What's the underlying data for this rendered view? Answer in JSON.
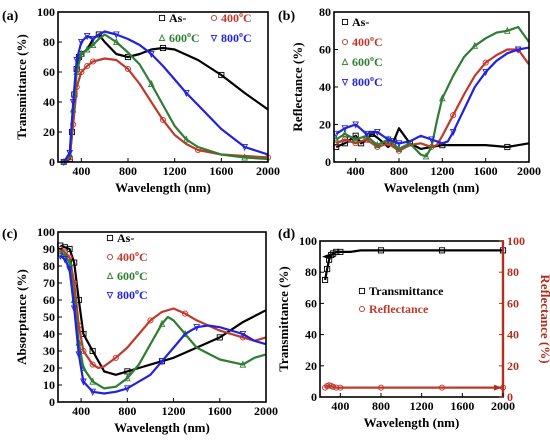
{
  "chart_data": [
    {
      "panel_label": "(a)",
      "type": "line",
      "xlabel": "Wavelength (nm)",
      "ylabel": "Transmittance (%)",
      "xlim": [
        200,
        2000
      ],
      "ylim": [
        0,
        100
      ],
      "xticks": [
        400,
        800,
        1200,
        1600,
        2000
      ],
      "yticks": [
        0,
        20,
        40,
        60,
        80,
        100
      ],
      "legend_position": "top-right",
      "series": [
        {
          "name": "As-",
          "color": "#000000",
          "marker": "square",
          "x": [
            250,
            300,
            320,
            340,
            360,
            380,
            400,
            450,
            500,
            550,
            600,
            700,
            800,
            900,
            1000,
            1100,
            1200,
            1400,
            1600,
            1800,
            2000
          ],
          "y": [
            0,
            2,
            20,
            45,
            62,
            70,
            72,
            75,
            82,
            85,
            80,
            72,
            70,
            72,
            75,
            76,
            75,
            68,
            58,
            46,
            35
          ]
        },
        {
          "name": "400°C",
          "color": "#c0392b",
          "marker": "circle",
          "x": [
            250,
            300,
            330,
            360,
            400,
            450,
            500,
            600,
            700,
            800,
            900,
            1000,
            1100,
            1200,
            1300,
            1400,
            1600,
            1800,
            2000
          ],
          "y": [
            0,
            3,
            25,
            50,
            60,
            64,
            67,
            69,
            68,
            62,
            52,
            40,
            28,
            18,
            12,
            8,
            5,
            4,
            3
          ]
        },
        {
          "name": "600°C",
          "color": "#2e7d32",
          "marker": "triangle-up",
          "x": [
            250,
            300,
            330,
            360,
            400,
            450,
            500,
            550,
            600,
            700,
            800,
            900,
            1000,
            1100,
            1200,
            1300,
            1400,
            1600,
            1800,
            2000
          ],
          "y": [
            0,
            5,
            35,
            60,
            72,
            75,
            78,
            82,
            85,
            80,
            73,
            65,
            52,
            38,
            24,
            15,
            10,
            5,
            3,
            2
          ]
        },
        {
          "name": "800°C",
          "color": "#2222dd",
          "marker": "triangle-down",
          "x": [
            250,
            300,
            330,
            360,
            400,
            450,
            500,
            550,
            600,
            700,
            800,
            900,
            1000,
            1100,
            1200,
            1300,
            1400,
            1600,
            1800,
            2000
          ],
          "y": [
            0,
            6,
            40,
            68,
            80,
            84,
            82,
            85,
            87,
            85,
            82,
            78,
            72,
            64,
            55,
            46,
            38,
            22,
            10,
            5
          ]
        }
      ]
    },
    {
      "panel_label": "(b)",
      "type": "line",
      "xlabel": "Wavelength (nm)",
      "ylabel": "Reflectance (%)",
      "xlim": [
        200,
        2000
      ],
      "ylim": [
        0,
        80
      ],
      "xticks": [
        400,
        800,
        1200,
        1600,
        2000
      ],
      "yticks": [
        0,
        20,
        40,
        60,
        80
      ],
      "legend_position": "top-left",
      "series": [
        {
          "name": "As-",
          "color": "#000000",
          "marker": "square",
          "x": [
            220,
            300,
            350,
            400,
            450,
            500,
            550,
            600,
            700,
            750,
            800,
            850,
            900,
            1000,
            1100,
            1200,
            1400,
            1600,
            1800,
            2000
          ],
          "y": [
            8,
            10,
            12,
            14,
            10,
            12,
            15,
            13,
            8,
            11,
            18,
            14,
            10,
            7,
            8,
            9,
            9,
            9,
            8,
            10
          ]
        },
        {
          "name": "400°C",
          "color": "#c0392b",
          "marker": "circle",
          "x": [
            220,
            300,
            400,
            500,
            600,
            700,
            800,
            900,
            1000,
            1100,
            1150,
            1200,
            1300,
            1400,
            1500,
            1600,
            1700,
            1800,
            1900,
            2000
          ],
          "y": [
            10,
            12,
            10,
            12,
            8,
            10,
            6,
            9,
            10,
            8,
            9,
            14,
            25,
            36,
            46,
            53,
            57,
            60,
            60,
            52
          ]
        },
        {
          "name": "600°C",
          "color": "#2e7d32",
          "marker": "triangle-up",
          "x": [
            220,
            300,
            400,
            500,
            600,
            700,
            800,
            900,
            1000,
            1050,
            1100,
            1150,
            1200,
            1300,
            1400,
            1500,
            1600,
            1700,
            1800,
            1900,
            2000
          ],
          "y": [
            12,
            15,
            12,
            14,
            9,
            12,
            7,
            10,
            4,
            3,
            8,
            22,
            34,
            46,
            56,
            62,
            66,
            69,
            70,
            72,
            64
          ]
        },
        {
          "name": "800°C",
          "color": "#2222dd",
          "marker": "triangle-down",
          "x": [
            220,
            300,
            400,
            500,
            600,
            700,
            800,
            900,
            1000,
            1100,
            1200,
            1250,
            1300,
            1400,
            1500,
            1600,
            1700,
            1800,
            1900,
            2000
          ],
          "y": [
            15,
            18,
            20,
            15,
            16,
            12,
            10,
            11,
            14,
            12,
            10,
            11,
            16,
            28,
            40,
            48,
            54,
            58,
            60,
            61
          ]
        }
      ]
    },
    {
      "panel_label": "(c)",
      "type": "line",
      "xlabel": "Wavelength (nm)",
      "ylabel": "Absorptance (%)",
      "xlim": [
        200,
        2000
      ],
      "ylim": [
        0,
        100
      ],
      "xticks": [
        400,
        800,
        1200,
        1600,
        2000
      ],
      "yticks": [
        0,
        10,
        20,
        30,
        40,
        50,
        60,
        70,
        80,
        90,
        100
      ],
      "legend_position": "top-left",
      "series": [
        {
          "name": "As-",
          "color": "#000000",
          "marker": "square",
          "x": [
            220,
            260,
            300,
            340,
            380,
            420,
            500,
            600,
            700,
            800,
            900,
            1000,
            1100,
            1200,
            1400,
            1600,
            1800,
            2000
          ],
          "y": [
            92,
            91,
            90,
            82,
            60,
            40,
            30,
            18,
            16,
            18,
            20,
            22,
            24,
            26,
            32,
            38,
            47,
            54
          ]
        },
        {
          "name": "400°C",
          "color": "#c0392b",
          "marker": "circle",
          "x": [
            220,
            260,
            300,
            340,
            380,
            420,
            500,
            550,
            600,
            700,
            800,
            900,
            1000,
            1100,
            1200,
            1300,
            1400,
            1600,
            1800,
            1900,
            2000
          ],
          "y": [
            90,
            88,
            85,
            70,
            45,
            30,
            22,
            20,
            21,
            26,
            32,
            40,
            48,
            53,
            55,
            52,
            48,
            42,
            38,
            36,
            38
          ]
        },
        {
          "name": "600°C",
          "color": "#2e7d32",
          "marker": "triangle-up",
          "x": [
            220,
            260,
            300,
            340,
            380,
            420,
            500,
            600,
            700,
            800,
            900,
            1000,
            1100,
            1150,
            1200,
            1300,
            1400,
            1600,
            1800,
            1900,
            2000
          ],
          "y": [
            88,
            86,
            82,
            60,
            35,
            20,
            12,
            8,
            9,
            14,
            22,
            34,
            46,
            50,
            48,
            40,
            32,
            25,
            22,
            26,
            28
          ]
        },
        {
          "name": "800°C",
          "color": "#2222dd",
          "marker": "triangle-down",
          "x": [
            220,
            260,
            300,
            340,
            380,
            420,
            500,
            600,
            700,
            800,
            900,
            1000,
            1100,
            1200,
            1300,
            1400,
            1500,
            1600,
            1800,
            1900,
            2000
          ],
          "y": [
            86,
            84,
            78,
            55,
            28,
            12,
            6,
            5,
            6,
            8,
            12,
            16,
            24,
            32,
            40,
            44,
            45,
            44,
            40,
            36,
            34
          ]
        }
      ]
    },
    {
      "panel_label": "(d)",
      "type": "line",
      "xlabel": "Wavelength (nm)",
      "ylabel": "Transmittance (%)",
      "ylabel_right": "Reflectance (%)",
      "xlim": [
        200,
        2000
      ],
      "ylim": [
        0,
        100
      ],
      "ylim_right": [
        0,
        100
      ],
      "xticks": [
        400,
        800,
        1200,
        1600,
        2000
      ],
      "yticks": [
        0,
        20,
        40,
        60,
        80,
        100
      ],
      "yticks_right": [
        0,
        20,
        40,
        60,
        80,
        100
      ],
      "legend_position": "center",
      "series": [
        {
          "name": "Transmittance",
          "color": "#000000",
          "marker": "square",
          "axis": "left",
          "x": [
            250,
            270,
            290,
            310,
            330,
            360,
            400,
            500,
            600,
            800,
            1000,
            1200,
            1400,
            1600,
            1800,
            2000
          ],
          "y": [
            75,
            82,
            88,
            91,
            92,
            93,
            93,
            93,
            94,
            94,
            94,
            94,
            94,
            94,
            94,
            94
          ]
        },
        {
          "name": "Reflectance",
          "color": "#c0392b",
          "marker": "circle",
          "axis": "right",
          "x": [
            250,
            270,
            290,
            310,
            330,
            360,
            400,
            500,
            600,
            800,
            1000,
            1200,
            1400,
            1600,
            1800,
            2000
          ],
          "y": [
            6,
            7,
            7.5,
            7,
            6.5,
            6,
            6,
            6,
            6,
            6,
            6,
            6,
            6,
            6,
            6,
            6
          ]
        }
      ]
    }
  ]
}
